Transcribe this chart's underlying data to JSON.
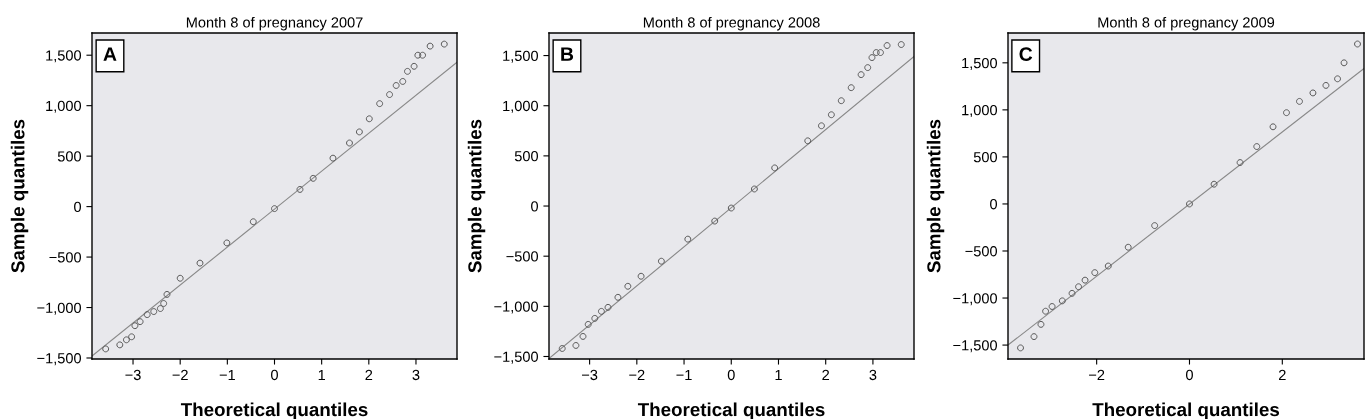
{
  "chart_data": [
    {
      "type": "scatter",
      "title": "Month 8 of pregnancy 2007",
      "xlabel": "Theoretical quantiles",
      "ylabel": "Sample quantiles",
      "annotations": [
        "A"
      ],
      "grid": false,
      "xlim": [
        -3.87,
        3.87
      ],
      "ylim": [
        -1510,
        1720
      ],
      "xticks": [
        {
          "value": -3,
          "label": "−3"
        },
        {
          "value": -2,
          "label": "−2"
        },
        {
          "value": -1,
          "label": "−1"
        },
        0,
        1,
        2,
        3
      ],
      "yticks": [
        {
          "value": -1500,
          "label": "−1,500"
        },
        {
          "value": -1000,
          "label": "−1,000"
        },
        {
          "value": -500,
          "label": "−500"
        },
        0,
        500,
        {
          "value": 1000,
          "label": "1,000"
        },
        {
          "value": 1500,
          "label": "1,500"
        }
      ],
      "series": [
        {
          "marker": "circle",
          "color": "#555555",
          "x": [
            -3.58,
            -3.28,
            -3.14,
            -3.03,
            -2.96,
            -2.85,
            -2.7,
            -2.56,
            -2.42,
            -2.35,
            -2.28,
            -2.0,
            -1.58,
            -1.01,
            -0.45,
            0,
            0.54,
            0.82,
            1.24,
            1.59,
            1.8,
            2.01,
            2.23,
            2.44,
            2.58,
            2.72,
            2.82,
            2.96,
            3.04,
            3.14,
            3.3,
            3.6
          ],
          "values": [
            -1410,
            -1370,
            -1320,
            -1290,
            -1180,
            -1140,
            -1070,
            -1040,
            -1010,
            -960,
            -870,
            -710,
            -560,
            -360,
            -150,
            -20,
            170,
            280,
            480,
            630,
            740,
            870,
            1020,
            1110,
            1200,
            1240,
            1340,
            1390,
            1500,
            1500,
            1590,
            1610
          ]
        },
        {
          "type": "line",
          "marker": "none",
          "color": "#888888",
          "x": [
            -3.87,
            3.87
          ],
          "values": [
            -1480,
            1430
          ]
        }
      ]
    },
    {
      "type": "scatter",
      "title": "Month 8 of pregnancy 2008",
      "xlabel": "Theoretical quantiles",
      "ylabel": "Sample quantiles",
      "annotations": [
        "B"
      ],
      "grid": false,
      "xlim": [
        -3.86,
        3.87
      ],
      "ylim": [
        -1525,
        1725
      ],
      "xticks": [
        {
          "value": -3,
          "label": "−3"
        },
        {
          "value": -2,
          "label": "−2"
        },
        {
          "value": -1,
          "label": "−1"
        },
        0,
        1,
        2,
        3
      ],
      "yticks": [
        {
          "value": -1500,
          "label": "−1,500"
        },
        {
          "value": -1000,
          "label": "−1,000"
        },
        {
          "value": -500,
          "label": "−500"
        },
        0,
        500,
        {
          "value": 1000,
          "label": "1,000"
        },
        {
          "value": 1500,
          "label": "1,500"
        }
      ],
      "series": [
        {
          "marker": "circle",
          "color": "#555555",
          "x": [
            -3.58,
            -3.29,
            -3.14,
            -3.03,
            -2.89,
            -2.75,
            -2.61,
            -2.4,
            -2.19,
            -1.91,
            -1.48,
            -0.92,
            -0.35,
            0,
            0.49,
            0.92,
            1.62,
            1.91,
            2.12,
            2.33,
            2.54,
            2.75,
            2.89,
            2.98,
            3.07,
            3.16,
            3.3,
            3.6
          ],
          "values": [
            -1420,
            -1390,
            -1300,
            -1180,
            -1120,
            -1050,
            -1010,
            -910,
            -800,
            -700,
            -550,
            -330,
            -150,
            -20,
            170,
            380,
            650,
            800,
            910,
            1050,
            1180,
            1310,
            1380,
            1480,
            1530,
            1530,
            1600,
            1610
          ]
        },
        {
          "type": "line",
          "marker": "none",
          "color": "#888888",
          "x": [
            -3.86,
            3.87
          ],
          "values": [
            -1520,
            1490
          ]
        }
      ]
    },
    {
      "type": "scatter",
      "title": "Month 8 of pregnancy 2009",
      "xlabel": "Theoretical quantiles",
      "ylabel": "Sample quantiles",
      "annotations": [
        "C"
      ],
      "grid": false,
      "xlim": [
        -3.91,
        3.76
      ],
      "ylim": [
        -1648,
        1817
      ],
      "xticks": [
        {
          "value": -2,
          "label": "−2"
        },
        0,
        2
      ],
      "yticks": [
        {
          "value": -1500,
          "label": "−1,500"
        },
        {
          "value": -1000,
          "label": "−1,000"
        },
        {
          "value": -500,
          "label": "−500"
        },
        0,
        500,
        {
          "value": 1000,
          "label": "1,000"
        },
        {
          "value": 1500,
          "label": "1,500"
        }
      ],
      "series": [
        {
          "marker": "circle",
          "color": "#555555",
          "x": [
            -3.64,
            -3.35,
            -3.2,
            -3.1,
            -2.96,
            -2.74,
            -2.53,
            -2.39,
            -2.25,
            -2.04,
            -1.75,
            -1.32,
            -0.75,
            0,
            0.53,
            1.09,
            1.45,
            1.8,
            2.09,
            2.37,
            2.66,
            2.94,
            3.19,
            3.33,
            3.62
          ],
          "values": [
            -1530,
            -1410,
            -1280,
            -1140,
            -1090,
            -1030,
            -950,
            -880,
            -810,
            -730,
            -660,
            -460,
            -230,
            0,
            210,
            440,
            610,
            820,
            970,
            1090,
            1180,
            1260,
            1330,
            1500,
            1700
          ]
        },
        {
          "type": "line",
          "marker": "none",
          "color": "#888888",
          "x": [
            -3.91,
            3.76
          ],
          "values": [
            -1500,
            1440
          ]
        }
      ]
    }
  ]
}
